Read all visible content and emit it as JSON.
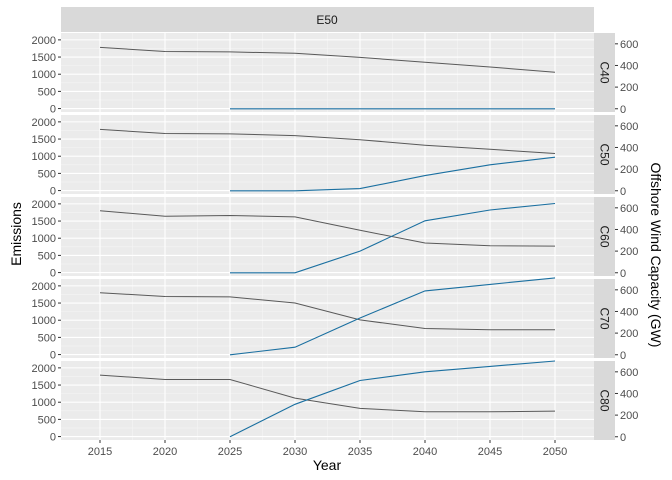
{
  "chart_data": {
    "type": "line",
    "facet_top_label": "E50",
    "xlabel": "Year",
    "ylabel_left": "Emissions",
    "ylabel_right": "Offshore Wind Capacity (GW)",
    "x_ticks": [
      2015,
      2020,
      2025,
      2030,
      2035,
      2040,
      2045,
      2050
    ],
    "xlim": [
      2012,
      2053
    ],
    "y_left_ticks": [
      0,
      500,
      1000,
      1500,
      2000
    ],
    "y_left_lim": [
      -100,
      2200
    ],
    "y_right_ticks": [
      0,
      200,
      400,
      600
    ],
    "y_right_lim": [
      -30,
      700
    ],
    "colors": {
      "emissions": "#595959",
      "wind": "#1a6fa0",
      "panel_bg": "#ebebeb",
      "strip_bg": "#d9d9d9"
    },
    "panels": [
      {
        "label": "C40",
        "emissions": {
          "x": [
            2015,
            2020,
            2025,
            2030,
            2035,
            2040,
            2045,
            2050
          ],
          "y": [
            1780,
            1660,
            1650,
            1610,
            1490,
            1350,
            1210,
            1060
          ]
        },
        "wind": {
          "x": [
            2025,
            2030,
            2035,
            2040,
            2045,
            2050
          ],
          "y": [
            0,
            0,
            0,
            0,
            0,
            0
          ]
        }
      },
      {
        "label": "C50",
        "emissions": {
          "x": [
            2015,
            2020,
            2025,
            2030,
            2035,
            2040,
            2045,
            2050
          ],
          "y": [
            1780,
            1660,
            1650,
            1600,
            1480,
            1320,
            1200,
            1080
          ]
        },
        "wind": {
          "x": [
            2025,
            2030,
            2035,
            2040,
            2045,
            2050
          ],
          "y": [
            0,
            0,
            20,
            140,
            240,
            310
          ]
        }
      },
      {
        "label": "C60",
        "emissions": {
          "x": [
            2015,
            2020,
            2025,
            2030,
            2035,
            2040,
            2045,
            2050
          ],
          "y": [
            1800,
            1640,
            1660,
            1620,
            1230,
            860,
            780,
            770
          ]
        },
        "wind": {
          "x": [
            2025,
            2030,
            2035,
            2040,
            2045,
            2050
          ],
          "y": [
            0,
            0,
            200,
            480,
            580,
            640
          ]
        }
      },
      {
        "label": "C70",
        "emissions": {
          "x": [
            2015,
            2020,
            2025,
            2030,
            2035,
            2040,
            2045,
            2050
          ],
          "y": [
            1800,
            1690,
            1680,
            1500,
            1010,
            760,
            720,
            720
          ]
        },
        "wind": {
          "x": [
            2025,
            2030,
            2035,
            2040,
            2045,
            2050
          ],
          "y": [
            0,
            70,
            340,
            590,
            650,
            710
          ]
        }
      },
      {
        "label": "C80",
        "emissions": {
          "x": [
            2015,
            2020,
            2025,
            2030,
            2035,
            2040,
            2045,
            2050
          ],
          "y": [
            1790,
            1660,
            1660,
            1120,
            820,
            720,
            720,
            740
          ]
        },
        "wind": {
          "x": [
            2025,
            2030,
            2035,
            2040,
            2045,
            2050
          ],
          "y": [
            0,
            300,
            520,
            600,
            650,
            700
          ]
        }
      }
    ]
  }
}
